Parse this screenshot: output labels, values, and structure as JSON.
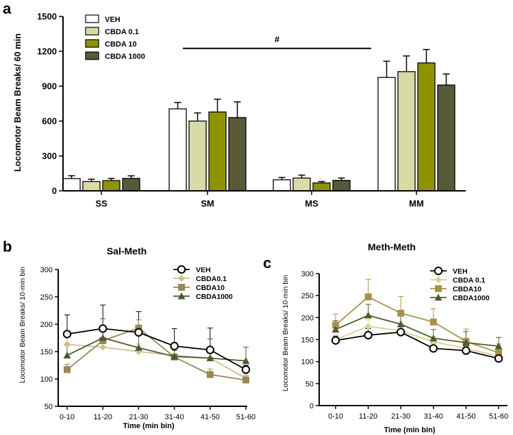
{
  "panel_letters": {
    "a": "a",
    "b": "b",
    "c": "c"
  },
  "colors": {
    "a": {
      "VEH": "#ffffff",
      "CBDA 0.1": "#d8dba6",
      "CBDA 10": "#8e9400",
      "CBDA 1000": "#575a37"
    },
    "b": {
      "VEH": "#ffffff",
      "CBDA0.1": "#cdbf8a",
      "CBDA10": "#978656",
      "CBDA1000": "#4e5a2c"
    },
    "c": {
      "VEH": "#ffffff",
      "CBDA 0.1": "#dccf90",
      "CBDA10": "#a89246",
      "CBDA1000": "#4e5a2c"
    }
  },
  "chart_data": [
    {
      "id": "a",
      "type": "bar",
      "title": "",
      "xlabel": "",
      "ylabel": "Locomotor Beam Breaks/ 60 min",
      "ylim": [
        0,
        1500
      ],
      "yticks": [
        "0",
        "300",
        "600",
        "900",
        "1200",
        "1500"
      ],
      "categories": [
        "SS",
        "SM",
        "MS",
        "MM"
      ],
      "series": [
        {
          "name": "VEH",
          "values": [
            105,
            705,
            95,
            975
          ],
          "errors": [
            25,
            55,
            20,
            140
          ]
        },
        {
          "name": "CBDA 0.1",
          "values": [
            80,
            600,
            110,
            1025
          ],
          "errors": [
            20,
            70,
            25,
            135
          ]
        },
        {
          "name": "CBDA 10",
          "values": [
            88,
            678,
            68,
            1100
          ],
          "errors": [
            18,
            110,
            12,
            115
          ]
        },
        {
          "name": "CBDA 1000",
          "values": [
            107,
            630,
            90,
            910
          ],
          "errors": [
            22,
            135,
            20,
            95
          ]
        }
      ],
      "annotation": {
        "text": "#",
        "from": "SM",
        "to": "MM",
        "y": 1225
      },
      "legend": "top-left"
    },
    {
      "id": "b",
      "type": "line",
      "title": "Sal-Meth",
      "xlabel": "Time (min bin)",
      "ylabel": "Locomotor Beam Breaks/ 10-min bin",
      "ylim": [
        50,
        300
      ],
      "yticks": [
        "50",
        "100",
        "150",
        "200",
        "250",
        "300"
      ],
      "categories": [
        "0-10",
        "11-20",
        "21-30",
        "31-40",
        "41-50",
        "51-60"
      ],
      "series": [
        {
          "name": "VEH",
          "marker": "circle",
          "values": [
            182,
            192,
            185,
            160,
            153,
            117
          ],
          "errors": [
            35,
            43,
            38,
            32,
            40,
            8
          ]
        },
        {
          "name": "CBDA0.1",
          "marker": "diamond",
          "values": [
            163,
            158,
            150,
            143,
            138,
            101
          ],
          "errors": [
            12,
            10,
            14,
            12,
            12,
            8
          ]
        },
        {
          "name": "CBDA10",
          "marker": "square",
          "values": [
            117,
            170,
            193,
            140,
            108,
            98
          ],
          "errors": [
            10,
            20,
            15,
            12,
            10,
            8
          ]
        },
        {
          "name": "CBDA1000",
          "marker": "triangle",
          "values": [
            143,
            175,
            157,
            141,
            138,
            133
          ],
          "errors": [
            20,
            35,
            30,
            25,
            35,
            25
          ]
        }
      ],
      "legend": "top-right"
    },
    {
      "id": "c",
      "type": "line",
      "title": "Meth-Meth",
      "xlabel": "Time (min bin)",
      "ylabel": "Locomotor Beam Breaks/ 10-min bin",
      "ylim": [
        0,
        300
      ],
      "yticks": [
        "0",
        "50",
        "100",
        "150",
        "200",
        "250",
        "300"
      ],
      "categories": [
        "0-10",
        "11-20",
        "21-30",
        "31-40",
        "41-50",
        "51-60"
      ],
      "series": [
        {
          "name": "VEH",
          "marker": "circle",
          "values": [
            148,
            160,
            167,
            130,
            125,
            107
          ],
          "errors": [
            10,
            15,
            15,
            12,
            10,
            8
          ]
        },
        {
          "name": "CBDA 0.1",
          "marker": "diamond",
          "values": [
            150,
            180,
            170,
            145,
            130,
            112
          ],
          "errors": [
            12,
            15,
            20,
            12,
            12,
            10
          ]
        },
        {
          "name": "CBDA10",
          "marker": "square",
          "values": [
            183,
            247,
            210,
            190,
            146,
            120
          ],
          "errors": [
            25,
            40,
            38,
            30,
            28,
            20
          ]
        },
        {
          "name": "CBDA1000",
          "marker": "triangle",
          "values": [
            173,
            205,
            185,
            153,
            143,
            135
          ],
          "errors": [
            20,
            25,
            25,
            20,
            25,
            20
          ]
        }
      ],
      "legend": "top-right"
    }
  ]
}
